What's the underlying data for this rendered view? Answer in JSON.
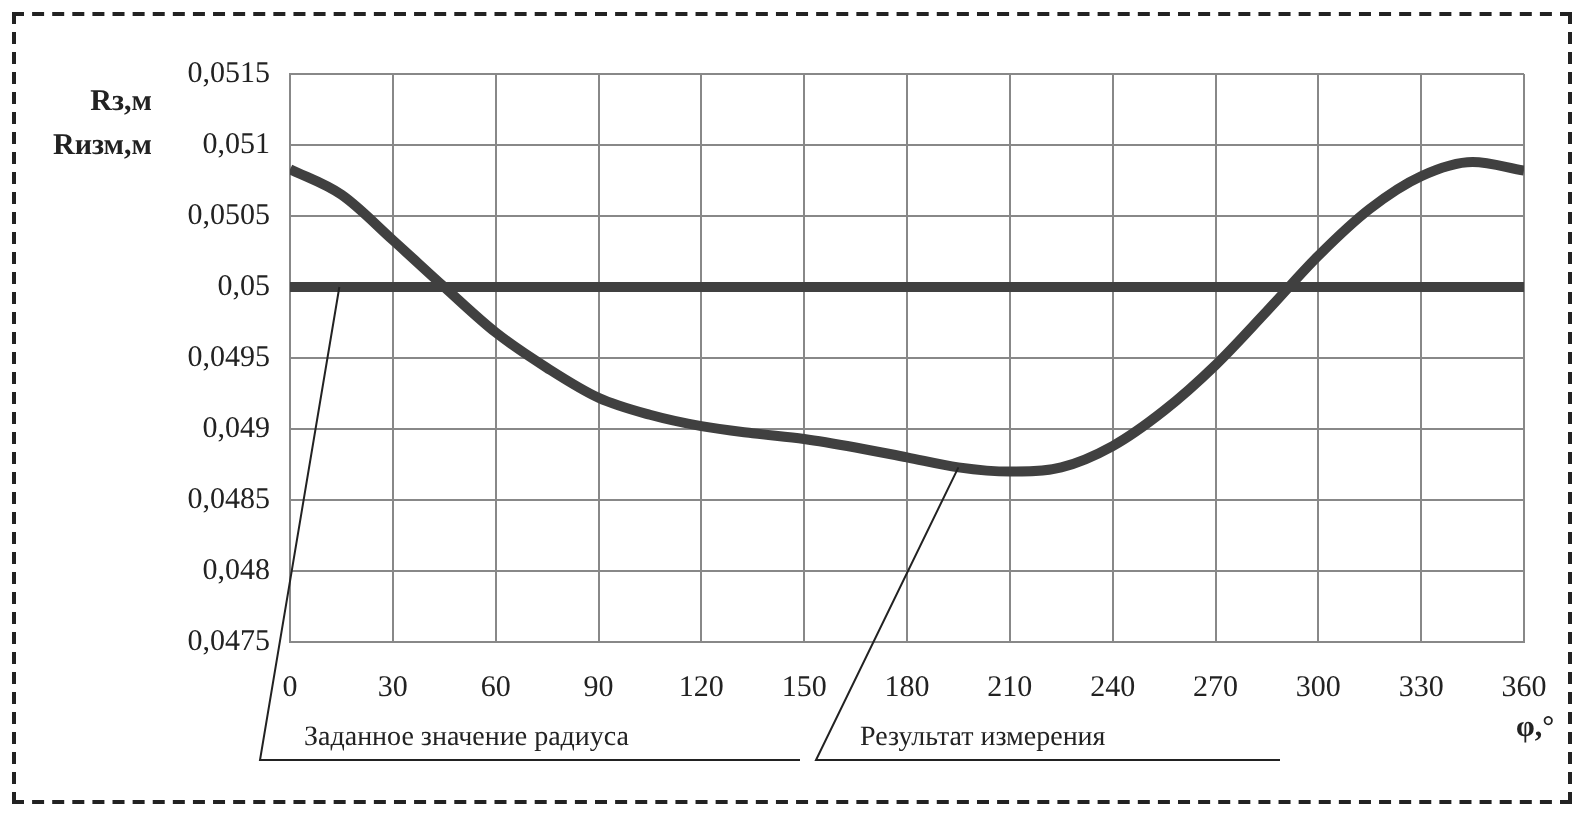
{
  "chart_data": {
    "type": "line",
    "x": [
      0,
      15,
      30,
      45,
      60,
      75,
      90,
      105,
      120,
      135,
      150,
      165,
      180,
      195,
      210,
      225,
      240,
      255,
      270,
      285,
      300,
      315,
      330,
      345,
      360
    ],
    "series": [
      {
        "name": "Заданное значение радиуса",
        "color": "#404040",
        "x": [
          0,
          360
        ],
        "values": [
          0.05,
          0.05
        ]
      },
      {
        "name": "Результат измерения",
        "color": "#404040",
        "values": [
          0.05083,
          0.05065,
          0.05033,
          0.05,
          0.04968,
          0.04943,
          0.04922,
          0.0491,
          0.04902,
          0.04897,
          0.04893,
          0.04887,
          0.0488,
          0.04873,
          0.0487,
          0.04873,
          0.04888,
          0.04913,
          0.04945,
          0.04983,
          0.05022,
          0.05055,
          0.05078,
          0.05088,
          0.05082
        ]
      }
    ],
    "xlabel": "φ,°",
    "ylabel": "Rз,м\nRизм,м",
    "xlim": [
      0,
      360
    ],
    "xticks": [
      0,
      30,
      60,
      90,
      120,
      150,
      180,
      210,
      240,
      270,
      300,
      330,
      360
    ],
    "ylim": [
      0.0475,
      0.0515
    ],
    "yticks": [
      {
        "value": 0.0475,
        "label": "0,0475"
      },
      {
        "value": 0.048,
        "label": "0,048"
      },
      {
        "value": 0.0485,
        "label": "0,0485"
      },
      {
        "value": 0.049,
        "label": "0,049"
      },
      {
        "value": 0.0495,
        "label": "0,0495"
      },
      {
        "value": 0.05,
        "label": "0,05"
      },
      {
        "value": 0.0505,
        "label": "0,0505"
      },
      {
        "value": 0.051,
        "label": "0,051"
      },
      {
        "value": 0.0515,
        "label": "0,0515"
      }
    ],
    "grid": true,
    "legend": false,
    "marker": "none",
    "line_style": "solid"
  }
}
